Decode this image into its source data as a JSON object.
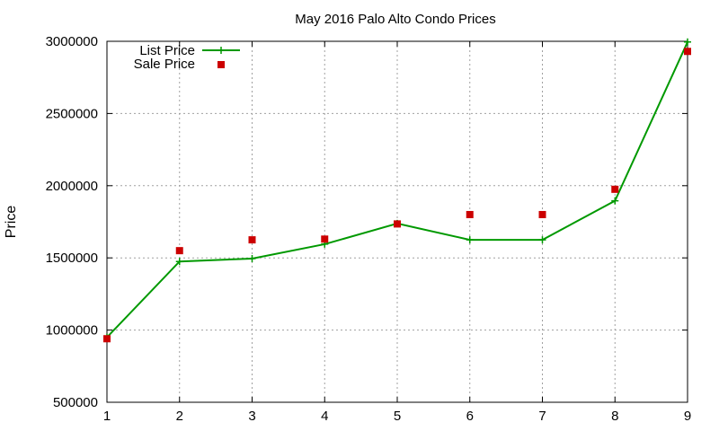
{
  "chart_data": {
    "type": "line",
    "title": "May 2016 Palo Alto Condo Prices",
    "xlabel": "",
    "ylabel": "Price",
    "x": [
      1,
      2,
      3,
      4,
      5,
      6,
      7,
      8,
      9
    ],
    "xlim": [
      1,
      9
    ],
    "ylim": [
      500000,
      3000000
    ],
    "xticks": [
      "1",
      "2",
      "3",
      "4",
      "5",
      "6",
      "7",
      "8",
      "9"
    ],
    "yticks": [
      "500000",
      "1000000",
      "1500000",
      "2000000",
      "2500000",
      "3000000"
    ],
    "grid": true,
    "legend_position": "top-left",
    "series": [
      {
        "name": "List Price",
        "style": "line-with-plus-markers",
        "color": "#009900",
        "values": [
          950000,
          1475000,
          1495000,
          1595000,
          1738000,
          1625000,
          1625000,
          1895000,
          2995000
        ]
      },
      {
        "name": "Sale Price",
        "style": "square-points",
        "color": "#cc0000",
        "values": [
          940000,
          1550000,
          1625000,
          1630000,
          1735000,
          1800000,
          1800000,
          1975000,
          2930000
        ]
      }
    ]
  }
}
